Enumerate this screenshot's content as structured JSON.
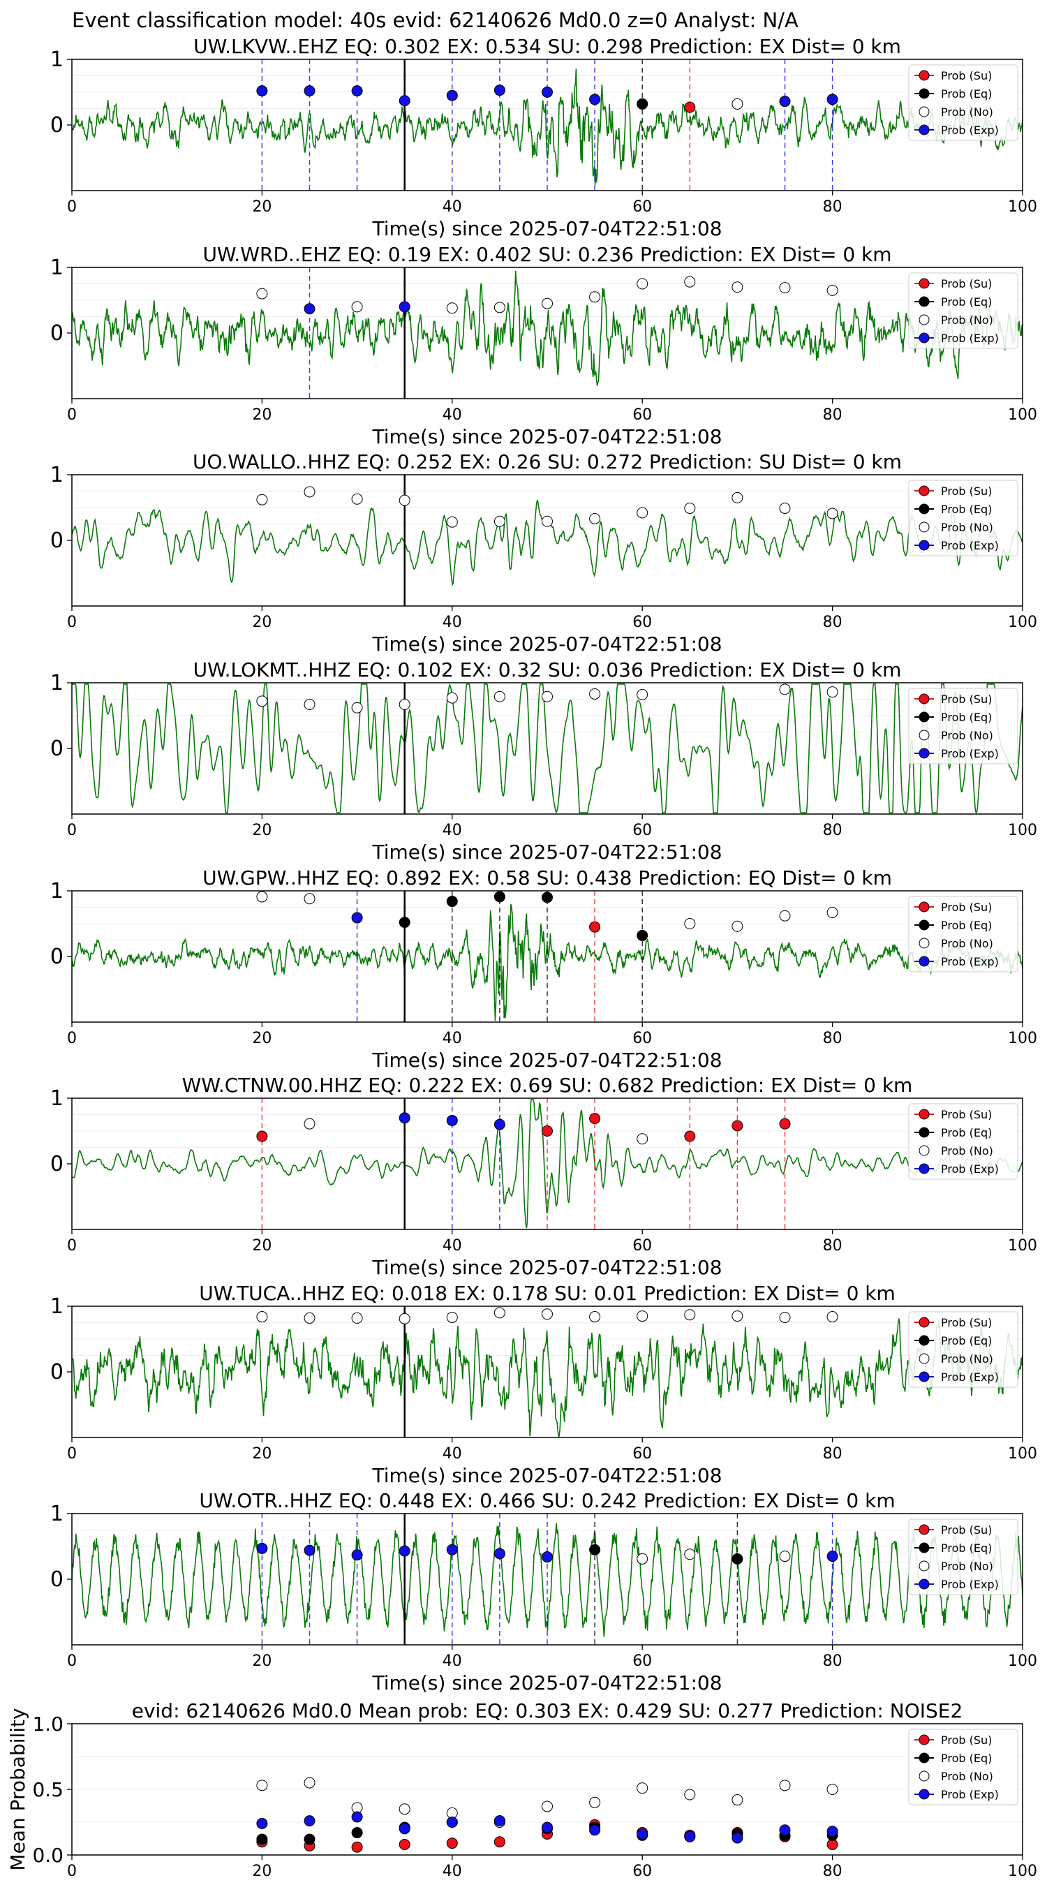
{
  "figure": {
    "suptitle": "Event classification model: 40s evid: 62140626 Md0.0 z=0 Analyst: N/A",
    "colors": {
      "su": "#e8121b",
      "eq": "#000000",
      "no": "#ffffff",
      "exp": "#1010e0",
      "waveform": "#0a7a0a",
      "onset": "#000000"
    },
    "legend": [
      "Prob (Su)",
      "Prob (Eq)",
      "Prob (No)",
      "Prob (Exp)"
    ]
  },
  "chart_data": [
    {
      "type": "scatter",
      "title": "UW.LKVW..EHZ   EQ: 0.302  EX: 0.534  SU: 0.298   Prediction: EX    Dist= 0 km",
      "xlabel": "Time(s) since 2025-07-04T22:51:08",
      "xlim": [
        0,
        100
      ],
      "ylim": [
        -1,
        1
      ],
      "xticks": [
        "0",
        "20",
        "40",
        "60",
        "80",
        "100"
      ],
      "yticks": [
        "1",
        "0"
      ],
      "onset": 35,
      "x": [
        20,
        25,
        30,
        35,
        40,
        45,
        50,
        55,
        60,
        65,
        70,
        75,
        80
      ],
      "points": [
        {
          "x": 20,
          "y": 0.52,
          "class": "exp"
        },
        {
          "x": 25,
          "y": 0.52,
          "class": "exp"
        },
        {
          "x": 30,
          "y": 0.52,
          "class": "exp"
        },
        {
          "x": 35,
          "y": 0.37,
          "class": "exp"
        },
        {
          "x": 40,
          "y": 0.45,
          "class": "exp"
        },
        {
          "x": 45,
          "y": 0.53,
          "class": "exp"
        },
        {
          "x": 50,
          "y": 0.5,
          "class": "exp"
        },
        {
          "x": 55,
          "y": 0.39,
          "class": "exp"
        },
        {
          "x": 60,
          "y": 0.32,
          "class": "eq"
        },
        {
          "x": 65,
          "y": 0.27,
          "class": "su"
        },
        {
          "x": 70,
          "y": 0.32,
          "class": "no"
        },
        {
          "x": 75,
          "y": 0.36,
          "class": "exp"
        },
        {
          "x": 80,
          "y": 0.39,
          "class": "exp"
        }
      ],
      "waveform": {
        "amplitude": 0.22,
        "burst_center": 53,
        "burst_width": 5,
        "burst_amplitude": 0.6,
        "smoothing": 1
      }
    },
    {
      "type": "scatter",
      "title": "UW.WRD..EHZ   EQ: 0.19  EX: 0.402  SU: 0.236   Prediction: EX    Dist= 0 km",
      "xlabel": "Time(s) since 2025-07-04T22:51:08",
      "xlim": [
        0,
        100
      ],
      "ylim": [
        -1,
        1
      ],
      "xticks": [
        "0",
        "20",
        "40",
        "60",
        "80",
        "100"
      ],
      "yticks": [
        "1",
        "0"
      ],
      "onset": 35,
      "points": [
        {
          "x": 20,
          "y": 0.6,
          "class": "no"
        },
        {
          "x": 25,
          "y": 0.37,
          "class": "exp"
        },
        {
          "x": 30,
          "y": 0.4,
          "class": "no"
        },
        {
          "x": 35,
          "y": 0.4,
          "class": "exp"
        },
        {
          "x": 40,
          "y": 0.38,
          "class": "no"
        },
        {
          "x": 45,
          "y": 0.39,
          "class": "no"
        },
        {
          "x": 50,
          "y": 0.45,
          "class": "no"
        },
        {
          "x": 55,
          "y": 0.55,
          "class": "no"
        },
        {
          "x": 60,
          "y": 0.75,
          "class": "no"
        },
        {
          "x": 65,
          "y": 0.78,
          "class": "no"
        },
        {
          "x": 70,
          "y": 0.7,
          "class": "no"
        },
        {
          "x": 75,
          "y": 0.69,
          "class": "no"
        },
        {
          "x": 80,
          "y": 0.65,
          "class": "no"
        }
      ],
      "waveform": {
        "amplitude": 0.3,
        "burst_center": 50,
        "burst_width": 10,
        "burst_amplitude": 0.2,
        "smoothing": 1
      }
    },
    {
      "type": "scatter",
      "title": "UO.WALLO..HHZ   EQ: 0.252  EX: 0.26  SU: 0.272   Prediction: SU    Dist= 0 km",
      "xlabel": "Time(s) since 2025-07-04T22:51:08",
      "xlim": [
        0,
        100
      ],
      "ylim": [
        -1,
        1
      ],
      "xticks": [
        "0",
        "20",
        "40",
        "60",
        "80",
        "100"
      ],
      "yticks": [
        "1",
        "0"
      ],
      "onset": 35,
      "points": [
        {
          "x": 20,
          "y": 0.62,
          "class": "no"
        },
        {
          "x": 25,
          "y": 0.74,
          "class": "no"
        },
        {
          "x": 30,
          "y": 0.63,
          "class": "no"
        },
        {
          "x": 35,
          "y": 0.61,
          "class": "no"
        },
        {
          "x": 40,
          "y": 0.28,
          "class": "no"
        },
        {
          "x": 45,
          "y": 0.29,
          "class": "no"
        },
        {
          "x": 50,
          "y": 0.29,
          "class": "no"
        },
        {
          "x": 55,
          "y": 0.33,
          "class": "no"
        },
        {
          "x": 60,
          "y": 0.42,
          "class": "no"
        },
        {
          "x": 65,
          "y": 0.49,
          "class": "no"
        },
        {
          "x": 70,
          "y": 0.65,
          "class": "no"
        },
        {
          "x": 75,
          "y": 0.49,
          "class": "no"
        },
        {
          "x": 80,
          "y": 0.41,
          "class": "no"
        }
      ],
      "waveform": {
        "amplitude": 0.2,
        "burst_center": 50,
        "burst_width": 10,
        "burst_amplitude": 0.1,
        "smoothing": 2
      }
    },
    {
      "type": "scatter",
      "title": "UW.LOKMT..HHZ   EQ: 0.102  EX: 0.32  SU: 0.036   Prediction: EX    Dist= 0 km",
      "xlabel": "Time(s) since 2025-07-04T22:51:08",
      "xlim": [
        0,
        100
      ],
      "ylim": [
        -1,
        1
      ],
      "xticks": [
        "0",
        "20",
        "40",
        "60",
        "80",
        "100"
      ],
      "yticks": [
        "1",
        "0"
      ],
      "onset": 35,
      "points": [
        {
          "x": 20,
          "y": 0.72,
          "class": "no"
        },
        {
          "x": 25,
          "y": 0.67,
          "class": "no"
        },
        {
          "x": 30,
          "y": 0.62,
          "class": "no"
        },
        {
          "x": 35,
          "y": 0.67,
          "class": "no"
        },
        {
          "x": 40,
          "y": 0.77,
          "class": "no"
        },
        {
          "x": 45,
          "y": 0.79,
          "class": "no"
        },
        {
          "x": 50,
          "y": 0.79,
          "class": "no"
        },
        {
          "x": 55,
          "y": 0.83,
          "class": "no"
        },
        {
          "x": 60,
          "y": 0.82,
          "class": "no"
        },
        {
          "x": 75,
          "y": 0.9,
          "class": "no"
        },
        {
          "x": 80,
          "y": 0.86,
          "class": "no"
        }
      ],
      "waveform": {
        "amplitude": 0.35,
        "burst_center": 85,
        "burst_width": 8,
        "burst_amplitude": 0.3,
        "smoothing": 3
      }
    },
    {
      "type": "scatter",
      "title": "UW.GPW..HHZ   EQ: 0.892  EX: 0.58  SU: 0.438   Prediction: EQ    Dist= 0 km",
      "xlabel": "Time(s) since 2025-07-04T22:51:08",
      "xlim": [
        0,
        100
      ],
      "ylim": [
        -1,
        1
      ],
      "xticks": [
        "0",
        "20",
        "40",
        "60",
        "80",
        "100"
      ],
      "yticks": [
        "1",
        "0"
      ],
      "onset": 35,
      "points": [
        {
          "x": 20,
          "y": 0.91,
          "class": "no"
        },
        {
          "x": 25,
          "y": 0.88,
          "class": "no"
        },
        {
          "x": 30,
          "y": 0.59,
          "class": "exp"
        },
        {
          "x": 35,
          "y": 0.52,
          "class": "eq"
        },
        {
          "x": 40,
          "y": 0.84,
          "class": "eq"
        },
        {
          "x": 45,
          "y": 0.91,
          "class": "eq"
        },
        {
          "x": 50,
          "y": 0.9,
          "class": "eq"
        },
        {
          "x": 55,
          "y": 0.45,
          "class": "su"
        },
        {
          "x": 60,
          "y": 0.32,
          "class": "eq"
        },
        {
          "x": 65,
          "y": 0.5,
          "class": "no"
        },
        {
          "x": 70,
          "y": 0.46,
          "class": "no"
        },
        {
          "x": 75,
          "y": 0.62,
          "class": "no"
        },
        {
          "x": 80,
          "y": 0.67,
          "class": "no"
        }
      ],
      "waveform": {
        "amplitude": 0.15,
        "burst_center": 46,
        "burst_width": 3.5,
        "burst_amplitude": 0.75,
        "smoothing": 1
      }
    },
    {
      "type": "scatter",
      "title": "WW.CTNW.00.HHZ   EQ: 0.222  EX: 0.69  SU: 0.682   Prediction: EX    Dist= 0 km",
      "xlabel": "Time(s) since 2025-07-04T22:51:08",
      "xlim": [
        0,
        100
      ],
      "ylim": [
        -1,
        1
      ],
      "xticks": [
        "0",
        "20",
        "40",
        "60",
        "80",
        "100"
      ],
      "yticks": [
        "1",
        "0"
      ],
      "onset": 35,
      "points": [
        {
          "x": 20,
          "y": 0.42,
          "class": "su"
        },
        {
          "x": 25,
          "y": 0.61,
          "class": "no"
        },
        {
          "x": 35,
          "y": 0.7,
          "class": "exp"
        },
        {
          "x": 40,
          "y": 0.66,
          "class": "exp"
        },
        {
          "x": 45,
          "y": 0.6,
          "class": "exp"
        },
        {
          "x": 50,
          "y": 0.5,
          "class": "su"
        },
        {
          "x": 55,
          "y": 0.69,
          "class": "su"
        },
        {
          "x": 60,
          "y": 0.38,
          "class": "no"
        },
        {
          "x": 65,
          "y": 0.42,
          "class": "su"
        },
        {
          "x": 70,
          "y": 0.58,
          "class": "su"
        },
        {
          "x": 75,
          "y": 0.61,
          "class": "su"
        }
      ],
      "waveform": {
        "amplitude": 0.1,
        "burst_center": 50,
        "burst_width": 6,
        "burst_amplitude": 0.5,
        "smoothing": 2
      }
    },
    {
      "type": "scatter",
      "title": "UW.TUCA..HHZ   EQ: 0.018  EX: 0.178  SU: 0.01   Prediction: EX    Dist= 0 km",
      "xlabel": "Time(s) since 2025-07-04T22:51:08",
      "xlim": [
        0,
        100
      ],
      "ylim": [
        -1,
        1
      ],
      "xticks": [
        "0",
        "20",
        "40",
        "60",
        "80",
        "100"
      ],
      "yticks": [
        "1",
        "0"
      ],
      "onset": 35,
      "points": [
        {
          "x": 20,
          "y": 0.84,
          "class": "no"
        },
        {
          "x": 25,
          "y": 0.82,
          "class": "no"
        },
        {
          "x": 30,
          "y": 0.82,
          "class": "no"
        },
        {
          "x": 35,
          "y": 0.81,
          "class": "no"
        },
        {
          "x": 40,
          "y": 0.83,
          "class": "no"
        },
        {
          "x": 45,
          "y": 0.9,
          "class": "no"
        },
        {
          "x": 50,
          "y": 0.88,
          "class": "no"
        },
        {
          "x": 55,
          "y": 0.84,
          "class": "no"
        },
        {
          "x": 60,
          "y": 0.85,
          "class": "no"
        },
        {
          "x": 65,
          "y": 0.87,
          "class": "no"
        },
        {
          "x": 70,
          "y": 0.85,
          "class": "no"
        },
        {
          "x": 75,
          "y": 0.83,
          "class": "no"
        },
        {
          "x": 80,
          "y": 0.84,
          "class": "no"
        }
      ],
      "waveform": {
        "amplitude": 0.4,
        "burst_center": 50,
        "burst_width": 10,
        "burst_amplitude": 0.1,
        "smoothing": 1
      }
    },
    {
      "type": "scatter",
      "title": "UW.OTR..HHZ   EQ: 0.448  EX: 0.466  SU: 0.242   Prediction: EX    Dist= 0 km",
      "xlabel": "Time(s) since 2025-07-04T22:51:08",
      "xlim": [
        0,
        100
      ],
      "ylim": [
        -1,
        1
      ],
      "xticks": [
        "0",
        "20",
        "40",
        "60",
        "80",
        "100"
      ],
      "yticks": [
        "1",
        "0"
      ],
      "onset": 35,
      "points": [
        {
          "x": 20,
          "y": 0.47,
          "class": "exp"
        },
        {
          "x": 25,
          "y": 0.44,
          "class": "exp"
        },
        {
          "x": 30,
          "y": 0.37,
          "class": "exp"
        },
        {
          "x": 35,
          "y": 0.43,
          "class": "exp"
        },
        {
          "x": 40,
          "y": 0.45,
          "class": "exp"
        },
        {
          "x": 45,
          "y": 0.39,
          "class": "exp"
        },
        {
          "x": 50,
          "y": 0.34,
          "class": "exp"
        },
        {
          "x": 55,
          "y": 0.45,
          "class": "eq"
        },
        {
          "x": 60,
          "y": 0.31,
          "class": "no"
        },
        {
          "x": 65,
          "y": 0.38,
          "class": "no"
        },
        {
          "x": 70,
          "y": 0.31,
          "class": "eq"
        },
        {
          "x": 75,
          "y": 0.35,
          "class": "no"
        },
        {
          "x": 80,
          "y": 0.35,
          "class": "exp"
        }
      ],
      "waveform": {
        "amplitude": 0.65,
        "burst_center": 48,
        "burst_width": 10,
        "burst_amplitude": 0.1,
        "smoothing": 0,
        "oscillation_period": 2.1
      }
    },
    {
      "type": "scatter",
      "title": "evid: 62140626  Md0.0   Mean prob:   EQ: 0.303  EX: 0.429  SU: 0.277   Prediction: NOISE2",
      "ylabel": "Mean Probability",
      "xlim": [
        0,
        100
      ],
      "ylim": [
        0,
        1
      ],
      "xticks": [
        "0",
        "20",
        "40",
        "60",
        "80",
        "100"
      ],
      "yticks": [
        "1.0",
        "0.5",
        "0.0"
      ],
      "x": [
        20,
        25,
        30,
        35,
        40,
        45,
        50,
        55,
        60,
        65,
        70,
        75,
        80
      ],
      "series": [
        {
          "name": "Prob (Su)",
          "class": "su",
          "values": [
            0.1,
            0.07,
            0.06,
            0.08,
            0.09,
            0.1,
            0.16,
            0.23,
            0.17,
            0.15,
            0.17,
            0.14,
            0.08
          ]
        },
        {
          "name": "Prob (Eq)",
          "class": "eq",
          "values": [
            0.12,
            0.12,
            0.17,
            0.21,
            0.25,
            0.26,
            0.2,
            0.21,
            0.15,
            0.14,
            0.16,
            0.15,
            0.15
          ]
        },
        {
          "name": "Prob (No)",
          "class": "no",
          "values": [
            0.53,
            0.55,
            0.36,
            0.35,
            0.32,
            0.25,
            0.37,
            0.4,
            0.51,
            0.46,
            0.42,
            0.53,
            0.5
          ]
        },
        {
          "name": "Prob (Exp)",
          "class": "exp",
          "values": [
            0.24,
            0.26,
            0.29,
            0.2,
            0.25,
            0.26,
            0.21,
            0.19,
            0.16,
            0.14,
            0.13,
            0.19,
            0.18
          ]
        }
      ]
    }
  ]
}
